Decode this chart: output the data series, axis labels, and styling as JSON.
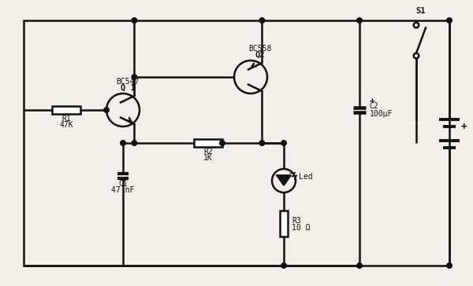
{
  "bg": "#f2efe9",
  "lc": "#111111",
  "lw": 1.8,
  "figsize": [
    6.0,
    3.64
  ],
  "dpi": 100,
  "xlim": [
    0,
    100
  ],
  "ylim": [
    0,
    60
  ],
  "components": {
    "R1_label": "R1",
    "R1_value": "47K",
    "R2_label": "R2",
    "R2_value": "1K",
    "R3_label": "R3",
    "R3_value": "10 Ω",
    "C1_label": "C1",
    "C1_value": "47 nF",
    "C2_label": "C2",
    "C2_value": "100μF",
    "Q1_label": "Q 1",
    "Q1_part": "BC547",
    "Q2_label": "Q2",
    "Q2_part": "BC558",
    "LED_label": "Led",
    "S1_label": "S1"
  }
}
